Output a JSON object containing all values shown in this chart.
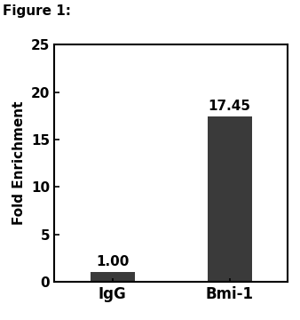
{
  "categories": [
    "IgG",
    "Bmi-1"
  ],
  "values": [
    1.0,
    17.45
  ],
  "bar_color": "#3a3a3a",
  "bar_width": 0.38,
  "ylim": [
    0,
    25
  ],
  "yticks": [
    0,
    5,
    10,
    15,
    20,
    25
  ],
  "ylabel": "Fold Enrichment",
  "figure_label": "Figure 1:",
  "value_labels": [
    "1.00",
    "17.45"
  ],
  "ylabel_fontsize": 11,
  "tick_fontsize": 11,
  "xlabel_fontsize": 12,
  "fig_label_fontsize": 11,
  "annotation_fontsize": 11,
  "background_color": "#ffffff"
}
